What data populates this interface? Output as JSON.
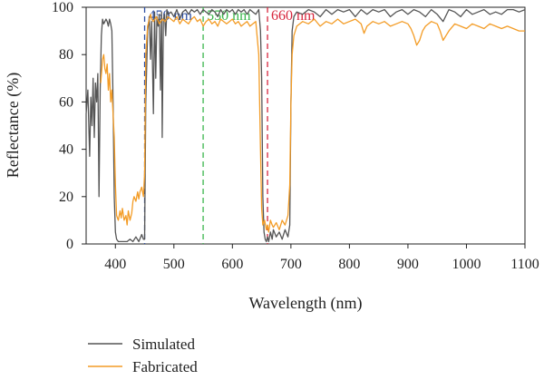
{
  "chart_data": {
    "type": "line",
    "xlabel": "Wavelength (nm)",
    "ylabel": "Reflectance (%)",
    "xlim": [
      350,
      1100
    ],
    "ylim": [
      0,
      100
    ],
    "xticks": [
      400,
      500,
      600,
      700,
      800,
      900,
      1000,
      1100
    ],
    "yticks": [
      0,
      20,
      40,
      60,
      80,
      100
    ],
    "grid": false,
    "legend": "bottom-left",
    "markers": [
      {
        "x": 450,
        "label": "450 nm",
        "color": "#2d4fa3"
      },
      {
        "x": 550,
        "label": "550 nm",
        "color": "#39b54a"
      },
      {
        "x": 660,
        "label": "660 nm",
        "color": "#d7263d"
      }
    ],
    "series": [
      {
        "name": "Simulated",
        "color": "#555555",
        "x": [
          350,
          353,
          356,
          358,
          360,
          362,
          364,
          366,
          368,
          370,
          372,
          374,
          376,
          378,
          380,
          382,
          384,
          386,
          388,
          390,
          392,
          394,
          396,
          398,
          400,
          402,
          405,
          410,
          415,
          420,
          425,
          430,
          435,
          440,
          445,
          448,
          450,
          452,
          455,
          458,
          460,
          462,
          465,
          467,
          469,
          471,
          473,
          475,
          477,
          479,
          480,
          482,
          484,
          486,
          488,
          490,
          495,
          500,
          505,
          510,
          515,
          520,
          525,
          530,
          535,
          540,
          545,
          550,
          555,
          560,
          565,
          570,
          575,
          580,
          585,
          590,
          595,
          600,
          605,
          610,
          615,
          620,
          625,
          630,
          635,
          640,
          645,
          648,
          650,
          652,
          654,
          656,
          658,
          660,
          662,
          665,
          668,
          670,
          675,
          680,
          685,
          690,
          695,
          698,
          700,
          702,
          705,
          710,
          720,
          730,
          740,
          750,
          760,
          770,
          780,
          790,
          800,
          810,
          820,
          830,
          840,
          850,
          860,
          870,
          880,
          890,
          900,
          910,
          920,
          930,
          940,
          950,
          960,
          970,
          980,
          990,
          1000,
          1010,
          1020,
          1030,
          1040,
          1050,
          1060,
          1070,
          1080,
          1090,
          1100
        ],
        "y": [
          55,
          65,
          37,
          62,
          50,
          70,
          45,
          68,
          60,
          72,
          20,
          65,
          88,
          95,
          93,
          94,
          95,
          94,
          92,
          95,
          93,
          90,
          60,
          20,
          5,
          2,
          1,
          1,
          1,
          1,
          2,
          1,
          3,
          1,
          4,
          2,
          2,
          60,
          90,
          96,
          78,
          94,
          55,
          98,
          70,
          96,
          92,
          97,
          65,
          98,
          45,
          95,
          97,
          88,
          99,
          97,
          98,
          96,
          99,
          95,
          98,
          99,
          97,
          99,
          98,
          99,
          97,
          99,
          98,
          97,
          99,
          98,
          96,
          99,
          97,
          99,
          98,
          99,
          97,
          99,
          98,
          99,
          97,
          99,
          98,
          97,
          99,
          90,
          70,
          20,
          5,
          2,
          1,
          3,
          1,
          5,
          2,
          6,
          3,
          5,
          2,
          6,
          3,
          8,
          60,
          90,
          96,
          98,
          97,
          99,
          98,
          96,
          99,
          97,
          99,
          98,
          99,
          96,
          99,
          97,
          99,
          98,
          99,
          96,
          98,
          99,
          97,
          99,
          98,
          96,
          99,
          97,
          94,
          99,
          98,
          96,
          99,
          97,
          98,
          99,
          97,
          98,
          97,
          99,
          99,
          98,
          99
        ]
      },
      {
        "name": "Fabricated",
        "color": "#f39c26",
        "x": [
          375,
          378,
          380,
          382,
          384,
          386,
          388,
          390,
          392,
          394,
          396,
          398,
          400,
          402,
          405,
          408,
          410,
          412,
          415,
          418,
          420,
          422,
          425,
          428,
          430,
          432,
          435,
          438,
          440,
          442,
          445,
          448,
          450,
          452,
          455,
          458,
          460,
          462,
          465,
          470,
          475,
          480,
          485,
          490,
          495,
          500,
          505,
          510,
          515,
          520,
          525,
          530,
          535,
          540,
          545,
          550,
          555,
          560,
          565,
          570,
          575,
          580,
          585,
          590,
          595,
          600,
          605,
          610,
          615,
          620,
          625,
          630,
          635,
          640,
          645,
          648,
          650,
          652,
          655,
          658,
          660,
          662,
          665,
          668,
          670,
          675,
          680,
          685,
          690,
          695,
          698,
          700,
          702,
          705,
          710,
          720,
          730,
          740,
          750,
          760,
          770,
          780,
          790,
          800,
          810,
          820,
          825,
          830,
          835,
          840,
          850,
          860,
          870,
          880,
          890,
          900,
          905,
          910,
          915,
          920,
          925,
          930,
          940,
          950,
          955,
          960,
          965,
          970,
          980,
          990,
          1000,
          1010,
          1020,
          1030,
          1040,
          1050,
          1060,
          1070,
          1080,
          1090,
          1100
        ],
        "y": [
          68,
          78,
          80,
          74,
          72,
          76,
          65,
          72,
          60,
          65,
          55,
          45,
          25,
          12,
          10,
          14,
          11,
          15,
          10,
          12,
          8,
          14,
          10,
          13,
          18,
          20,
          18,
          22,
          19,
          22,
          24,
          20,
          30,
          80,
          92,
          95,
          97,
          95,
          94,
          96,
          93,
          95,
          94,
          96,
          95,
          94,
          96,
          93,
          95,
          94,
          93,
          95,
          96,
          94,
          95,
          92,
          94,
          95,
          93,
          94,
          92,
          95,
          94,
          93,
          94,
          95,
          93,
          94,
          92,
          93,
          94,
          92,
          93,
          94,
          80,
          40,
          15,
          8,
          10,
          6,
          8,
          5,
          10,
          8,
          7,
          9,
          6,
          10,
          8,
          12,
          25,
          60,
          80,
          88,
          92,
          94,
          93,
          95,
          92,
          94,
          93,
          95,
          93,
          94,
          95,
          93,
          89,
          92,
          93,
          94,
          93,
          94,
          92,
          93,
          94,
          93,
          91,
          88,
          84,
          86,
          90,
          92,
          94,
          93,
          90,
          86,
          88,
          90,
          93,
          92,
          91,
          93,
          92,
          91,
          93,
          92,
          91,
          92,
          91,
          90,
          90
        ]
      }
    ]
  }
}
